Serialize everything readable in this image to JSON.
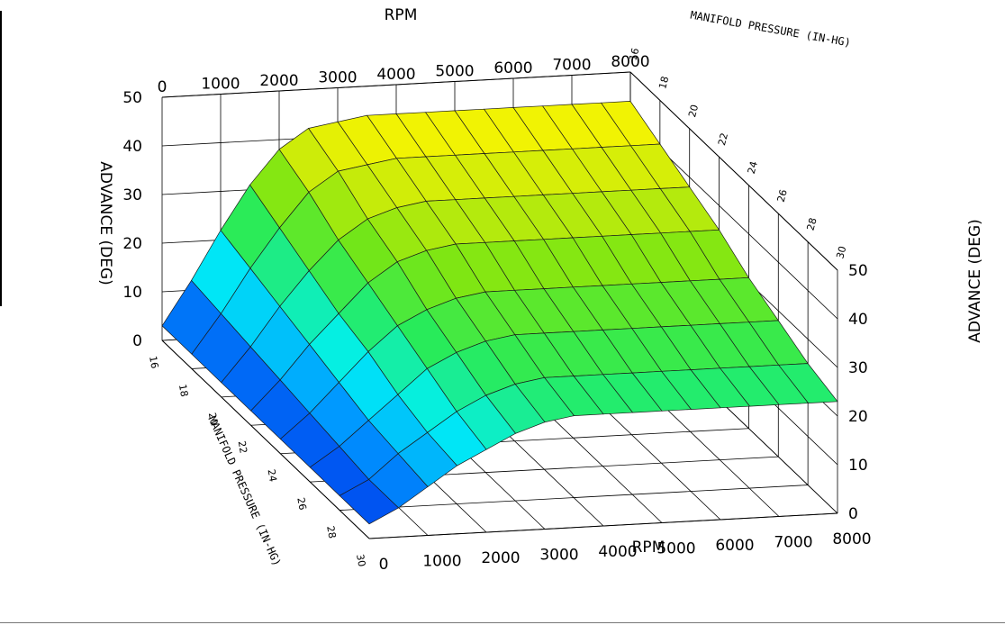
{
  "chart_data": {
    "type": "surface3d",
    "title": "",
    "x_axis": {
      "label": "RPM",
      "ticks": [
        0,
        1000,
        2000,
        3000,
        4000,
        5000,
        6000,
        7000,
        8000
      ],
      "range": [
        0,
        8000
      ]
    },
    "y_axis": {
      "label": "MANIFOLD PRESSURE (IN-HG)",
      "ticks": [
        16,
        18,
        20,
        22,
        24,
        26,
        28,
        30
      ],
      "range": [
        16,
        30
      ]
    },
    "z_axis": {
      "label": "ADVANCE (DEG)",
      "ticks": [
        0,
        10,
        20,
        30,
        40,
        50
      ],
      "range": [
        0,
        50
      ]
    },
    "grid": true,
    "rpm": [
      0,
      500,
      1000,
      1500,
      2000,
      2500,
      3000,
      3500,
      4000,
      4500,
      5000,
      5500,
      6000,
      6500,
      7000,
      7500,
      8000
    ],
    "pressure": [
      16,
      18,
      20,
      22,
      24,
      26,
      28,
      30
    ],
    "advance": [
      [
        3,
        12,
        22,
        31,
        38,
        42,
        43,
        44,
        44,
        44,
        44,
        44,
        44,
        44,
        44,
        44,
        44
      ],
      [
        3,
        11,
        20,
        28,
        35,
        39,
        40,
        41,
        41,
        41,
        41,
        41,
        41,
        41,
        41,
        41,
        41
      ],
      [
        3,
        10,
        18,
        25,
        31,
        35,
        37,
        38,
        38,
        38,
        38,
        38,
        38,
        38,
        38,
        38,
        38
      ],
      [
        3,
        9,
        16,
        22,
        28,
        32,
        34,
        35,
        35,
        35,
        35,
        35,
        35,
        35,
        35,
        35,
        35
      ],
      [
        3,
        8,
        14,
        20,
        25,
        28,
        30,
        31,
        31,
        31,
        31,
        31,
        31,
        31,
        31,
        31,
        31
      ],
      [
        3,
        7,
        12,
        17,
        22,
        25,
        27,
        28,
        28,
        28,
        28,
        28,
        28,
        28,
        28,
        28,
        28
      ],
      [
        3,
        6,
        11,
        15,
        19,
        22,
        24,
        25,
        25,
        25,
        25,
        25,
        25,
        25,
        25,
        25,
        25
      ],
      [
        3,
        6,
        10,
        14,
        17,
        20,
        22,
        23,
        23,
        23,
        23,
        23,
        23,
        23,
        23,
        23,
        23
      ]
    ]
  }
}
